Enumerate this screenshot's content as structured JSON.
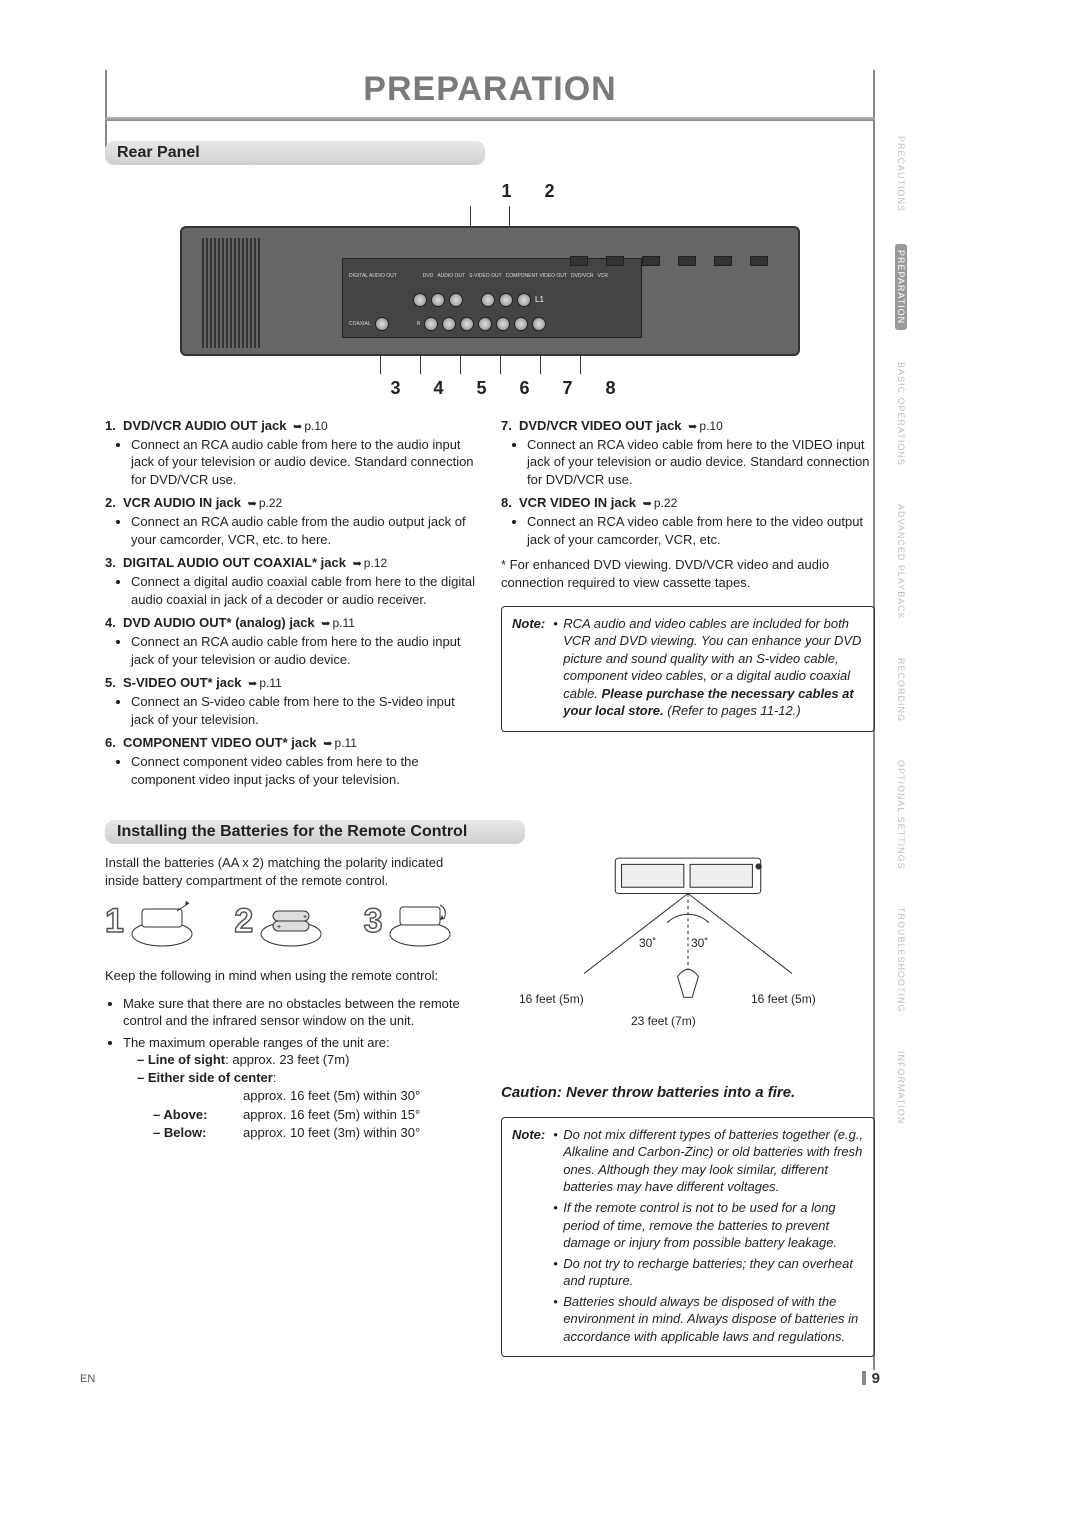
{
  "title": "PREPARATION",
  "sections": {
    "rear_panel": "Rear Panel",
    "batteries": "Installing the Batteries for the Remote Control"
  },
  "callouts_top": "1   2",
  "callouts_bot": "3  4  5  6  7  8",
  "diagram_labels": {
    "l1": "L1",
    "digital_audio_out": "DIGITAL AUDIO OUT",
    "coaxial": "COAXIAL",
    "dvd": "DVD",
    "audio_out": "AUDIO OUT",
    "s_video_out": "S-VIDEO OUT",
    "dvd_vcr": "DVD/VCR",
    "vcr": "VCR",
    "r": "R",
    "l": "L",
    "component_video_out": "COMPONENT VIDEO OUT",
    "video": "VIDEO",
    "audio_in": "AUDIO IN",
    "video_in": "VIDEO IN"
  },
  "jacks_left": [
    {
      "n": "1.",
      "title": "DVD/VCR AUDIO OUT jack",
      "page": "p.10",
      "desc": "Connect an RCA audio cable from here to the audio input jack of your television or audio device. Standard connection for DVD/VCR use."
    },
    {
      "n": "2.",
      "title": "VCR AUDIO IN jack",
      "page": "p.22",
      "desc": "Connect an RCA audio cable from the audio output jack of your camcorder, VCR, etc. to here."
    },
    {
      "n": "3.",
      "title": "DIGITAL AUDIO OUT COAXIAL* jack",
      "page": "p.12",
      "desc": "Connect a digital audio coaxial cable from here to the digital audio coaxial in jack of a decoder or audio receiver."
    },
    {
      "n": "4.",
      "title": "DVD AUDIO OUT* (analog) jack",
      "page": "p.11",
      "desc": "Connect an RCA audio cable from here to the audio input jack of your television or audio device."
    },
    {
      "n": "5.",
      "title": "S-VIDEO OUT* jack",
      "page": "p.11",
      "desc": "Connect an S-video cable from here to the S-video input jack of your television."
    },
    {
      "n": "6.",
      "title": "COMPONENT VIDEO OUT* jack",
      "page": "p.11",
      "desc": "Connect component video cables from here to the component video input jacks of your television."
    }
  ],
  "jacks_right": [
    {
      "n": "7.",
      "title": "DVD/VCR VIDEO OUT jack",
      "page": "p.10",
      "desc": "Connect an RCA video cable from here to the VIDEO input jack of your television or audio device. Standard connection for DVD/VCR use."
    },
    {
      "n": "8.",
      "title": "VCR VIDEO IN jack",
      "page": "p.22",
      "desc": "Connect an RCA video cable from here to the video output jack of your camcorder, VCR, etc."
    }
  ],
  "footnote_star": "* For enhanced DVD viewing. DVD/VCR video and audio connection required to view cassette tapes.",
  "note1": {
    "label": "Note:",
    "text_pre": "RCA audio and video cables are included for both VCR and DVD viewing. You can enhance your DVD picture and sound quality with an S-video cable, component video cables, or a digital audio coaxial cable. ",
    "strong": "Please purchase the necessary cables at your local store.",
    "text_post": " (Refer to pages 11-12.)"
  },
  "batt_intro": "Install the batteries (AA x 2) matching the polarity indicated inside battery compartment of the remote control.",
  "steps": [
    "1",
    "2",
    "3"
  ],
  "keep_in_mind": "Keep the following in mind when using the remote control:",
  "km_items": [
    "Make sure that there are no obstacles between the remote control and the infrared sensor window on the unit.",
    "The maximum operable ranges of the unit are:"
  ],
  "los_label": "Line of sight",
  "los_val": ":  approx. 23 feet (7m)",
  "eoc_label": "Either side of center",
  "eoc_suffix": ":",
  "rt_hdr": "approx. 16 feet (5m) within 30°",
  "rt_rows": [
    {
      "l": "Above:",
      "v": "approx. 16 feet (5m) within 15°"
    },
    {
      "l": "Below:",
      "v": "approx. 10 feet (3m) within 30°"
    }
  ],
  "angle_left": "30˚",
  "angle_right": "30˚",
  "dist_side": "16 feet (5m)",
  "dist_center": "23 feet (7m)",
  "caution": "Caution:  Never throw batteries into a fire.",
  "note2": {
    "label": "Note:",
    "items": [
      "Do not mix different types of batteries together (e.g., Alkaline and Carbon-Zinc) or old batteries with fresh ones. Although they may look similar, different batteries may have different voltages.",
      "If the remote control is not to be used for a long period of time, remove the batteries to prevent damage or injury from possible battery leakage.",
      "Do not try to recharge batteries; they can overheat and rupture.",
      "Batteries should always be disposed of with the environment in mind. Always dispose of batteries in accordance with applicable laws and regulations."
    ]
  },
  "tabs": [
    "PRECAUTIONS",
    "PREPARATION",
    "BASIC OPERATIONS",
    "ADVANCED PLAYBACK",
    "RECORDING",
    "OPTIONAL SETTINGS",
    "TROUBLESHOOTING",
    "INFORMATION"
  ],
  "active_tab_index": 1,
  "footer_lang": "EN",
  "page_number": "9"
}
